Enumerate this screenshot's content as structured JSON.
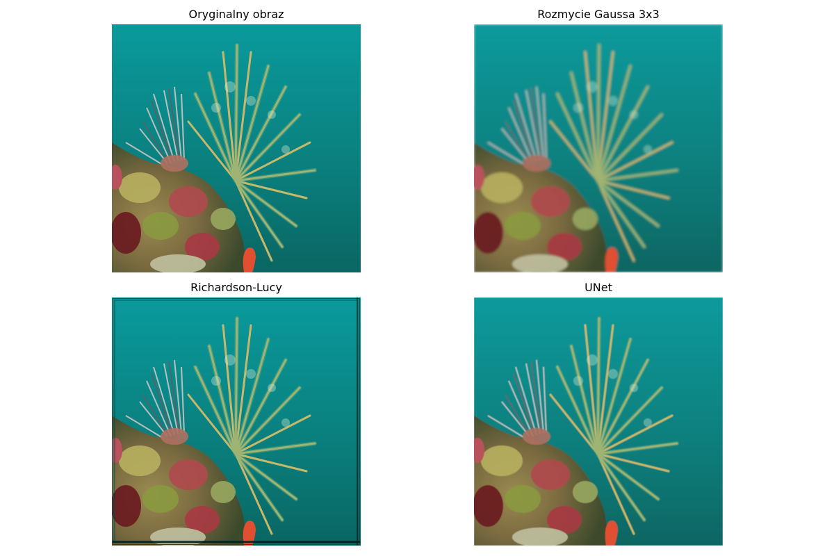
{
  "figure": {
    "panels": [
      {
        "title": "Oryginalny obraz"
      },
      {
        "title": "Rozmycie Gaussa 3x3"
      },
      {
        "title": "Richardson-Lucy"
      },
      {
        "title": "UNet"
      }
    ]
  },
  "colors": {
    "water_top": "#0a9a9c",
    "water_bottom": "#0a6a66",
    "frond": "#c8b86a",
    "frond_green": "#6fae7d",
    "reef_red": "#b04a4e",
    "reef_yellow": "#b8b060",
    "sponge_orange": "#e05030"
  }
}
